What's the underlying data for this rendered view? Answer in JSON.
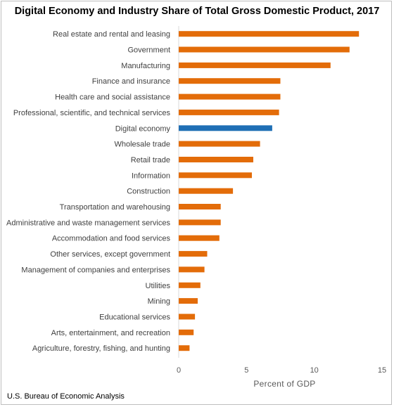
{
  "chart_data": {
    "type": "bar",
    "orientation": "horizontal",
    "title": "Digital Economy and Industry Share of Total Gross Domestic Product, 2017",
    "xlabel": "Percent of GDP",
    "ylabel": "",
    "xlim": [
      0,
      15
    ],
    "xticks": [
      0,
      5,
      10,
      15
    ],
    "grid": false,
    "legend": "none",
    "categories": [
      "Real estate and rental and leasing",
      "Government",
      "Manufacturing",
      "Finance and insurance",
      "Health care and social assistance",
      "Professional, scientific, and technical services",
      "Digital economy",
      "Wholesale trade",
      "Retail trade",
      "Information",
      "Construction",
      "Transportation and warehousing",
      "Administrative and waste management services",
      "Accommodation and food services",
      "Other services, except government",
      "Management of companies and enterprises",
      "Utilities",
      "Mining",
      "Educational services",
      "Arts, entertainment, and recreation",
      "Agriculture, forestry, fishing, and hunting"
    ],
    "values": [
      13.3,
      12.6,
      11.2,
      7.5,
      7.5,
      7.4,
      6.9,
      6.0,
      5.5,
      5.4,
      4.0,
      3.1,
      3.1,
      3.0,
      2.1,
      1.9,
      1.6,
      1.4,
      1.2,
      1.1,
      0.8
    ],
    "highlight_category": "Digital economy",
    "colors": {
      "bar": "#e36c09",
      "highlight": "#1f6fb5",
      "axis": "#d9d9d9"
    }
  },
  "source_note": "U.S. Bureau of Economic Analysis"
}
